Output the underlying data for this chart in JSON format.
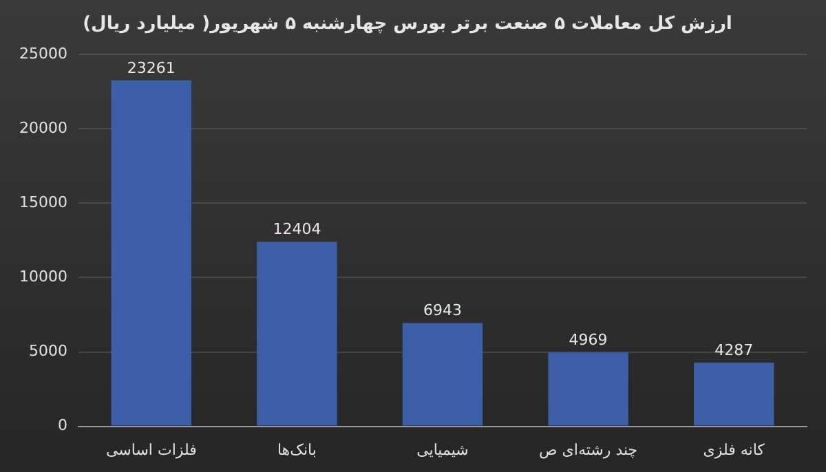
{
  "chart_data": {
    "type": "bar",
    "title": "ارزش کل معاملات ۵ صنعت برتر بورس چهارشنبه ۵ شهریور( میلیارد ریال)",
    "categories": [
      "فلزات اساسی",
      "بانک‌ها",
      "شیمیایی",
      "چند رشته‌ای ص",
      "کانه فلزی"
    ],
    "values": [
      23261,
      12404,
      6943,
      4969,
      4287
    ],
    "color": "#3d5ea8",
    "ylim": [
      0,
      25000
    ],
    "yticks": [
      0,
      5000,
      10000,
      15000,
      20000,
      25000
    ],
    "grid": "y",
    "data_labels": true,
    "legend": false
  }
}
